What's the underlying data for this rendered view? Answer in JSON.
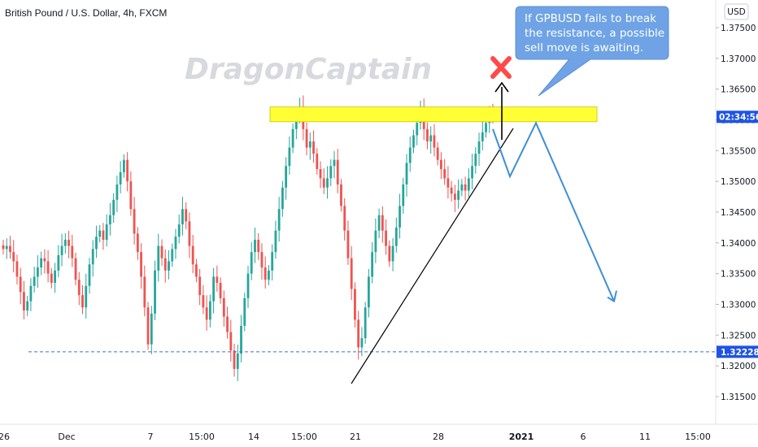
{
  "chart_data": {
    "type": "candlestick",
    "title": "British Pound / U.S. Dollar, 4h, FXCM",
    "watermark": "DragonCaptain",
    "currency_button": "USD",
    "ylim": [
      1.3105,
      1.3795
    ],
    "y_ticks": [
      "1.37500",
      "1.37000",
      "1.36500",
      "1.36000",
      "1.35500",
      "1.35000",
      "1.34500",
      "1.34000",
      "1.33500",
      "1.33000",
      "1.32500",
      "1.32000",
      "1.31500"
    ],
    "x_ticks": [
      "26",
      "Dec",
      "7",
      "15:00",
      "14",
      "15:00",
      "21",
      "28",
      "2021",
      "6",
      "11",
      "15:00"
    ],
    "close_series": [
      1.339,
      1.3395,
      1.3385,
      1.337,
      1.3345,
      1.332,
      1.329,
      1.3305,
      1.333,
      1.3345,
      1.336,
      1.3375,
      1.337,
      1.335,
      1.3335,
      1.3355,
      1.338,
      1.3395,
      1.3405,
      1.3395,
      1.3375,
      1.334,
      1.3315,
      1.3295,
      1.333,
      1.3365,
      1.339,
      1.341,
      1.342,
      1.3405,
      1.343,
      1.3445,
      1.347,
      1.3495,
      1.3515,
      1.3535,
      1.35,
      1.3455,
      1.3415,
      1.3385,
      1.3345,
      1.3295,
      1.3235,
      1.3285,
      1.3355,
      1.3395,
      1.3375,
      1.3355,
      1.337,
      1.339,
      1.341,
      1.343,
      1.3455,
      1.3435,
      1.3395,
      1.3365,
      1.3345,
      1.3315,
      1.3295,
      1.3275,
      1.3305,
      1.3345,
      1.3335,
      1.331,
      1.328,
      1.3255,
      1.3225,
      1.3195,
      1.322,
      1.3265,
      1.331,
      1.335,
      1.3385,
      1.3405,
      1.3385,
      1.336,
      1.334,
      1.3355,
      1.3385,
      1.342,
      1.3455,
      1.349,
      1.3525,
      1.3555,
      1.3585,
      1.3605,
      1.362,
      1.3585,
      1.3555,
      1.3565,
      1.3545,
      1.352,
      1.3505,
      1.349,
      1.3505,
      1.3525,
      1.3535,
      1.3495,
      1.346,
      1.342,
      1.3375,
      1.3325,
      1.3275,
      1.323,
      1.3245,
      1.3295,
      1.3345,
      1.3385,
      1.342,
      1.3445,
      1.342,
      1.3395,
      1.337,
      1.3395,
      1.3425,
      1.346,
      1.3495,
      1.353,
      1.3555,
      1.3575,
      1.3595,
      1.3615,
      1.3585,
      1.3565,
      1.3575,
      1.3555,
      1.3535,
      1.352,
      1.3505,
      1.349,
      1.348,
      1.347,
      1.3485,
      1.3495,
      1.3485,
      1.3505,
      1.3525,
      1.3545,
      1.3565,
      1.358,
      1.3595,
      1.361,
      1.3605
    ],
    "resistance_zone": [
      1.3597,
      1.3621
    ],
    "support_line": 1.32228,
    "support_label": "1.32228",
    "current_price_label": "02:34:56",
    "projection_path": [
      1.3585,
      1.3508,
      1.3595,
      1.3305
    ],
    "annotation": [
      "If GPBUSD fails to break",
      "the resistance, a possible",
      "sell move is awaiting."
    ],
    "colors": {
      "up": "#26a69a",
      "down": "#ef5350",
      "zone": "#ffff33",
      "projection": "#3d8fd6",
      "callout": "#6fa3e6",
      "price_tag": "#1e53e5",
      "cross": "#ff4a4a"
    }
  }
}
